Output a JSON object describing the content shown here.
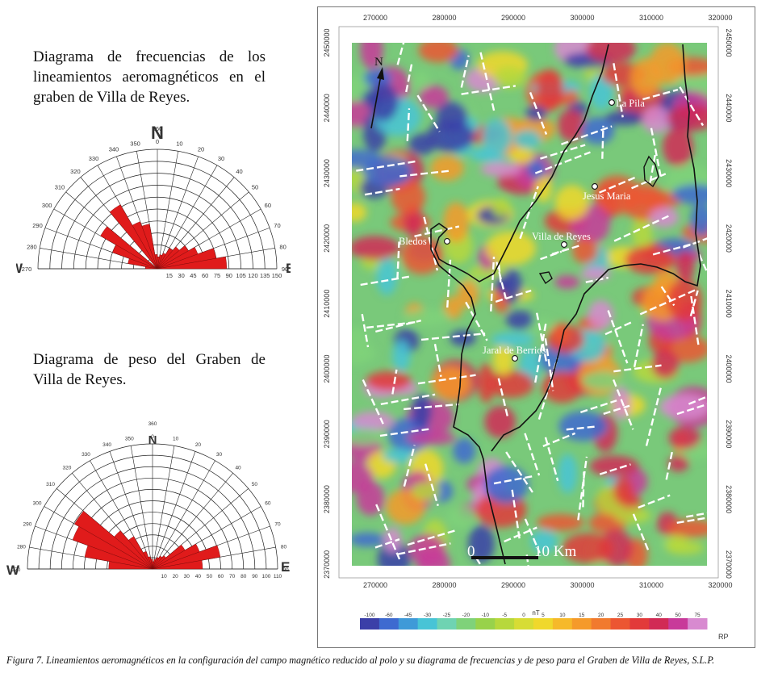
{
  "frequency_diagram": {
    "heading": "Diagrama de frecuencias de los lineamientos aeromagnéticos en el graben de Villa de Reyes.",
    "north_label": "N",
    "west_label": "W",
    "east_label": "E",
    "angle_labels": [
      "360",
      "350",
      "340",
      "330",
      "320",
      "310",
      "300",
      "290",
      "280",
      "270",
      "0",
      "10",
      "20",
      "30",
      "40",
      "50",
      "60",
      "70",
      "80",
      "90"
    ],
    "scale_labels": [
      "15",
      "30",
      "45",
      "60",
      "75",
      "90",
      "105",
      "120",
      "135",
      "150"
    ],
    "petals": [
      {
        "azimuth": 325,
        "length": 0.62
      },
      {
        "azimuth": 335,
        "length": 0.42
      },
      {
        "azimuth": 345,
        "length": 0.38
      },
      {
        "azimuth": 305,
        "length": 0.55
      },
      {
        "azimuth": 295,
        "length": 0.4
      },
      {
        "azimuth": 285,
        "length": 0.25
      },
      {
        "azimuth": 355,
        "length": 0.12
      },
      {
        "azimuth": 5,
        "length": 0.1
      },
      {
        "azimuth": 15,
        "length": 0.12
      },
      {
        "azimuth": 25,
        "length": 0.14
      },
      {
        "azimuth": 35,
        "length": 0.2
      },
      {
        "azimuth": 45,
        "length": 0.24
      },
      {
        "azimuth": 55,
        "length": 0.3
      },
      {
        "azimuth": 65,
        "length": 0.36
      },
      {
        "azimuth": 75,
        "length": 0.5
      },
      {
        "azimuth": 85,
        "length": 0.58
      },
      {
        "azimuth": 275,
        "length": 0.1
      }
    ]
  },
  "weight_diagram": {
    "heading": "Diagrama de peso del Graben de Villa de Reyes.",
    "north_label": "N",
    "west_label": "W",
    "east_label": "E",
    "angle_labels": [
      "360",
      "350",
      "340",
      "330",
      "320",
      "310",
      "300",
      "290",
      "280",
      "270",
      "0",
      "10",
      "20",
      "30",
      "40",
      "50",
      "60",
      "70",
      "80",
      "90"
    ],
    "scale_labels": [
      "10",
      "20",
      "30",
      "40",
      "50",
      "60",
      "70",
      "80",
      "90",
      "100",
      "110"
    ],
    "petals": [
      {
        "azimuth": 305,
        "length": 0.72
      },
      {
        "azimuth": 295,
        "length": 0.68
      },
      {
        "azimuth": 285,
        "length": 0.55
      },
      {
        "azimuth": 275,
        "length": 0.35
      },
      {
        "azimuth": 315,
        "length": 0.4
      },
      {
        "azimuth": 325,
        "length": 0.3
      },
      {
        "azimuth": 335,
        "length": 0.15
      },
      {
        "azimuth": 345,
        "length": 0.1
      },
      {
        "azimuth": 355,
        "length": 0.08
      },
      {
        "azimuth": 5,
        "length": 0.06
      },
      {
        "azimuth": 15,
        "length": 0.08
      },
      {
        "azimuth": 25,
        "length": 0.1
      },
      {
        "azimuth": 35,
        "length": 0.12
      },
      {
        "azimuth": 45,
        "length": 0.14
      },
      {
        "azimuth": 55,
        "length": 0.3
      },
      {
        "azimuth": 65,
        "length": 0.4
      },
      {
        "azimuth": 75,
        "length": 0.55
      },
      {
        "azimuth": 85,
        "length": 0.4
      }
    ]
  },
  "map": {
    "x_ticks": [
      "270000",
      "280000",
      "290000",
      "300000",
      "310000",
      "320000"
    ],
    "y_ticks_left": [
      "2450000",
      "2440000",
      "2430000",
      "2420000",
      "2410000",
      "2400000",
      "2390000",
      "2380000",
      "2370000"
    ],
    "y_ticks_right": [
      "2450000",
      "2440000",
      "2430000",
      "2420000",
      "2410000",
      "2400000",
      "2390000",
      "2380000",
      "2370000"
    ],
    "north_arrow": "N",
    "places": [
      {
        "name": "La Pila"
      },
      {
        "name": "Jesus Maria"
      },
      {
        "name": "Bledos"
      },
      {
        "name": "Villa de Reyes"
      },
      {
        "name": "Jaral de Berrios"
      }
    ],
    "scale_bar": {
      "start": "0",
      "end": "10 Km"
    },
    "colorbar_unit": "nT",
    "colorbar_labels": [
      "-100",
      "-60",
      "-45",
      "-30",
      "-25",
      "-20",
      "-10",
      "-5",
      "0",
      "5",
      "10",
      "15",
      "20",
      "25",
      "30",
      "40",
      "50",
      "75"
    ],
    "colorbar_colors": [
      "#3b3fa8",
      "#3e6ad0",
      "#3f9ad8",
      "#48c4d6",
      "#6fd3b2",
      "#7fd27a",
      "#98d24b",
      "#b7d83c",
      "#d7dc35",
      "#f0d82c",
      "#f6b92a",
      "#f59a2a",
      "#f17a2e",
      "#ec5632",
      "#e23a3a",
      "#d12a55",
      "#c83a9a",
      "#d88ad0"
    ],
    "colorbar_tag": "RP"
  },
  "caption": {
    "label": "Figura 7.",
    "text": "Lineamientos aeromagnéticos en la configuración del campo magnético reducido al polo y su diagrama de frecuencias y de peso para el Graben de Villa de Reyes, S.L.P."
  }
}
